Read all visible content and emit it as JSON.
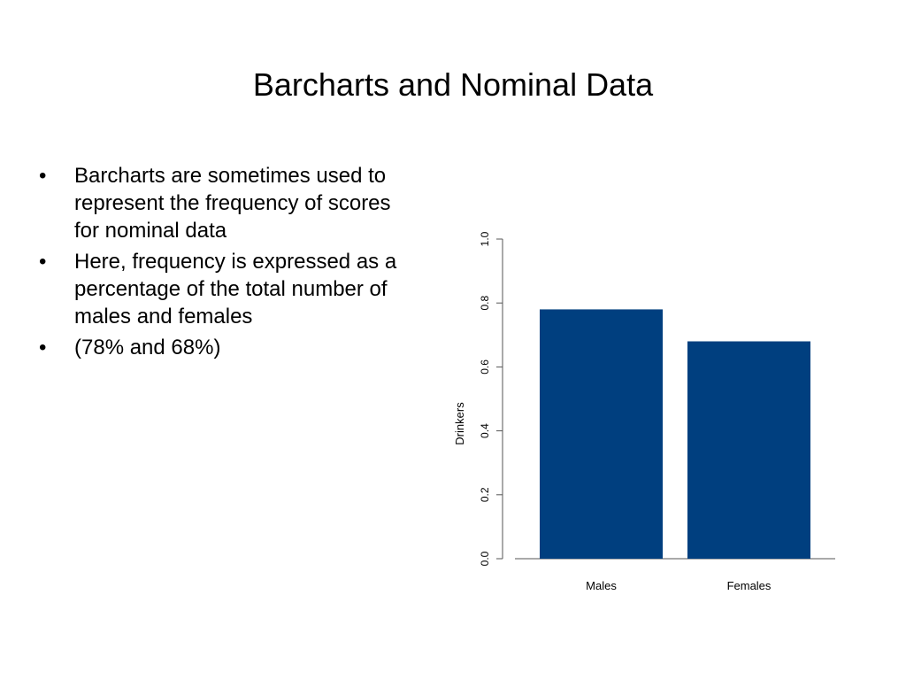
{
  "slide": {
    "title": "Barcharts and Nominal Data",
    "bullets": [
      "Barcharts are sometimes used to represent the frequency of scores for nominal data",
      "Here, frequency is expressed as a percentage of the total number of males and females",
      "(78% and 68%)"
    ],
    "bullet_glyph": "•"
  },
  "chart_data": {
    "type": "bar",
    "categories": [
      "Males",
      "Females"
    ],
    "values": [
      0.78,
      0.68
    ],
    "title": "",
    "xlabel": "",
    "ylabel": "Drinkers",
    "ylim": [
      0,
      1.0
    ],
    "yticks": [
      "0.0",
      "0.2",
      "0.4",
      "0.6",
      "0.8",
      "1.0"
    ],
    "bar_color": "#003f7f",
    "grid": false,
    "legend": "none"
  }
}
